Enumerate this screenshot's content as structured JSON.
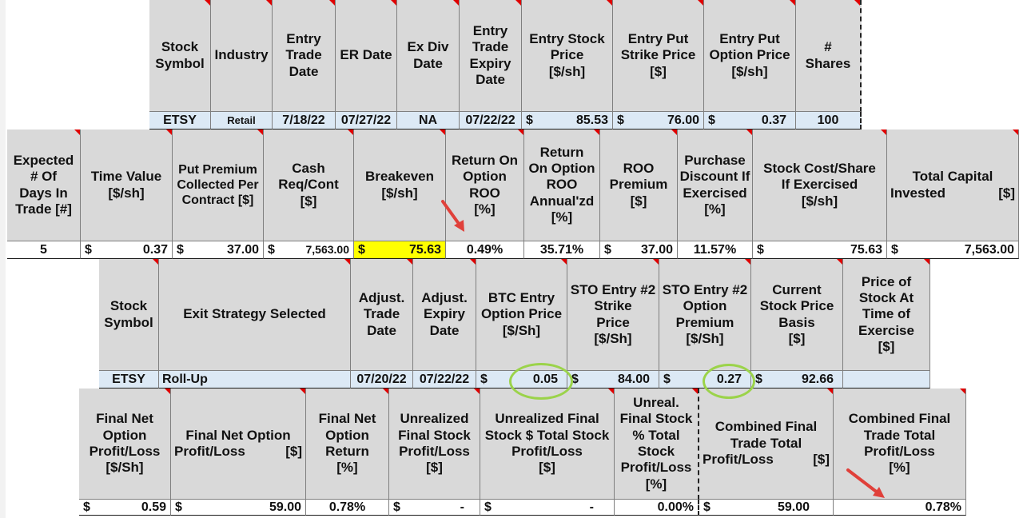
{
  "table1": {
    "headers": [
      "Stock\nSymbol",
      "Industry",
      "Entry\nTrade\nDate",
      "ER Date",
      "Ex Div\nDate",
      "Entry\nTrade\nExpiry\nDate",
      "Entry Stock\nPrice\n[$/sh]",
      "Entry  Put\nStrike Price\n[$]",
      "Entry  Put\nOption Price\n[$/sh]",
      "#\nShares"
    ],
    "values": [
      "ETSY",
      "Retail",
      "7/18/22",
      "07/27/22",
      "NA",
      "07/22/22",
      "85.53",
      "76.00",
      "0.37",
      "100"
    ],
    "currency_symbol": "$"
  },
  "table2": {
    "headers": [
      "Expected\n# Of\nDays In\nTrade   [#]",
      "Time Value\n[$/sh]",
      "Put Premium\nCollected Per\nContract [$]",
      "Cash\nReq/Cont\n[$]",
      "Breakeven\n[$/sh]",
      "Return On\nOption\nROO\n[%]",
      "Return\nOn Option\nROO\nAnnual'zd\n[%]",
      "ROO\nPremium\n[$]",
      "Purchase\nDiscount If\nExercised\n[%]",
      "Stock Cost/Share\nIf Exercised\n[$/sh]",
      "Total Capital"
    ],
    "total_capital_sub_left": "Invested",
    "total_capital_sub_right": "[$]",
    "values": [
      "5",
      "0.37",
      "37.00",
      "7,563.00",
      "75.63",
      "0.49%",
      "35.71%",
      "37.00",
      "11.57%",
      "75.63",
      "7,563.00"
    ]
  },
  "table3": {
    "headers": [
      "Stock\nSymbol",
      "Exit Strategy Selected",
      "Adjust.\nTrade\nDate",
      "Adjust.\nExpiry\nDate",
      "BTC Entry\nOption Price\n[$/Sh]",
      "STO Entry #2\nStrike\nPrice\n[$/Sh]",
      "STO Entry #2\nOption\nPremium\n[$/Sh]",
      "Current\nStock Price\nBasis\n[$]",
      "Price of\nStock At\nTime of\nExercise\n[$]"
    ],
    "values": [
      "ETSY",
      "Roll-Up",
      "07/20/22",
      "07/22/22",
      "0.05",
      "84.00",
      "0.27",
      "92.66",
      ""
    ]
  },
  "table4": {
    "headers": [
      "Final Net\nOption\nProfit/Loss\n[$/Sh]",
      "Final Net Option",
      "Final Net\nOption\nReturn\n[%]",
      "Unrealized\nFinal Stock\nProfit/Loss\n[$]",
      "Unrealized Final\nStock $ Total Stock\nProfit/Loss\n[$]",
      "Unreal.\nFinal Stock\n% Total\nStock\nProfit/Loss\n[%]",
      "Combined Final\nTrade Total",
      "Combined Final\nTrade Total\nProfit/Loss\n[%]"
    ],
    "final_net_option_sub_left": "Profit/Loss",
    "final_net_option_sub_right": "[$]",
    "combined_sub_left": "Profit/Loss",
    "combined_sub_right": "[$]",
    "values": [
      "0.59",
      "59.00",
      "0.78%",
      "-",
      "-",
      "0.00%",
      "59.00",
      "0.78%"
    ]
  },
  "colors": {
    "header_bg": "#d9d9d9",
    "data_row_bg": "#dce9f5",
    "highlight": "#ffff00",
    "annotation_circle": "#9bd34a",
    "annotation_arrow": "#e0403a",
    "comment_marker": "#e00000"
  }
}
